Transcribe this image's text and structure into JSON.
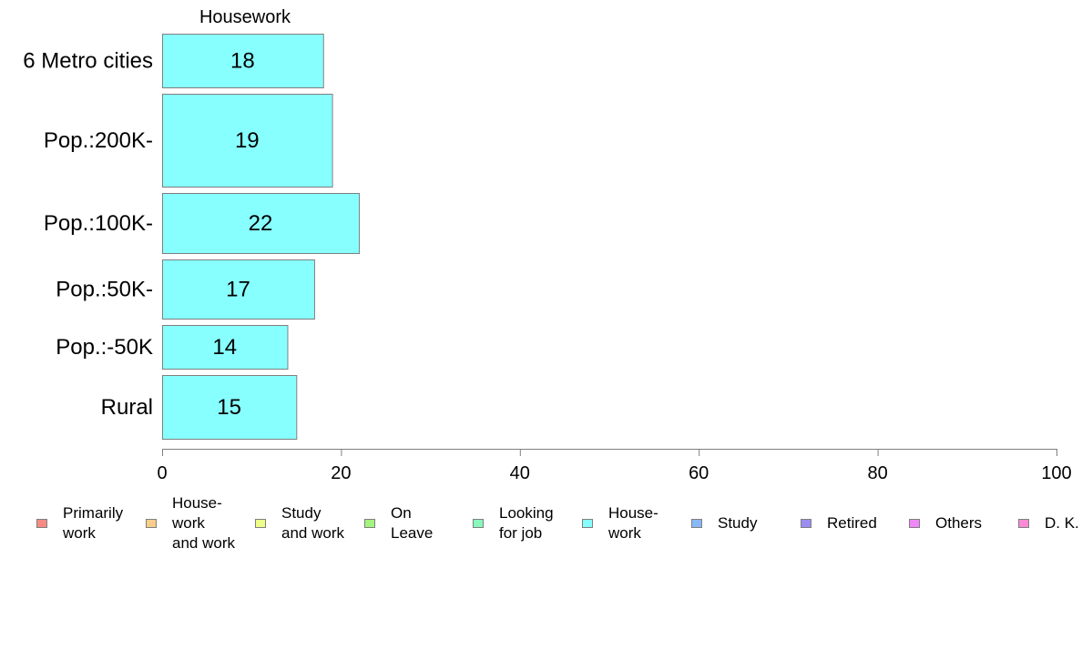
{
  "chart_data": {
    "type": "bar",
    "orientation": "horizontal",
    "title": "Housework",
    "categories": [
      "6 Metro cities",
      "Pop.:200K-",
      "Pop.:100K-",
      "Pop.:50K-",
      "Pop.:-50K",
      "Rural"
    ],
    "series": [
      {
        "name": "House-\nwork",
        "values": [
          18,
          19,
          22,
          17,
          14,
          15
        ],
        "color": "#88ffff"
      }
    ],
    "data_labels": [
      "18",
      "19",
      "22",
      "17",
      "14",
      "15"
    ],
    "xlim": [
      0,
      100
    ],
    "xticks": [
      0,
      20,
      40,
      60,
      80,
      100
    ],
    "xtick_labels": [
      "0",
      "20",
      "40",
      "60",
      "80",
      "100"
    ],
    "bar_border_color": "#7f7f7f",
    "axis_color": "#7f7f7f",
    "grid": false,
    "legend_position": "bottom",
    "legend": [
      {
        "label": "Primarily\nwork",
        "color": "#f88a84"
      },
      {
        "label": "House-\nwork\nand work",
        "color": "#f9cd8a"
      },
      {
        "label": "Study\nand work",
        "color": "#eeff88"
      },
      {
        "label": "On\nLeave",
        "color": "#a4f57e"
      },
      {
        "label": "Looking\nfor job",
        "color": "#88f8bc"
      },
      {
        "label": "House-\nwork",
        "color": "#88ffff"
      },
      {
        "label": "Study",
        "color": "#88b8f8"
      },
      {
        "label": "Retired",
        "color": "#9b8cf2"
      },
      {
        "label": "Others",
        "color": "#ef88f7"
      },
      {
        "label": "D. K.",
        "color": "#f98ad4"
      }
    ]
  }
}
